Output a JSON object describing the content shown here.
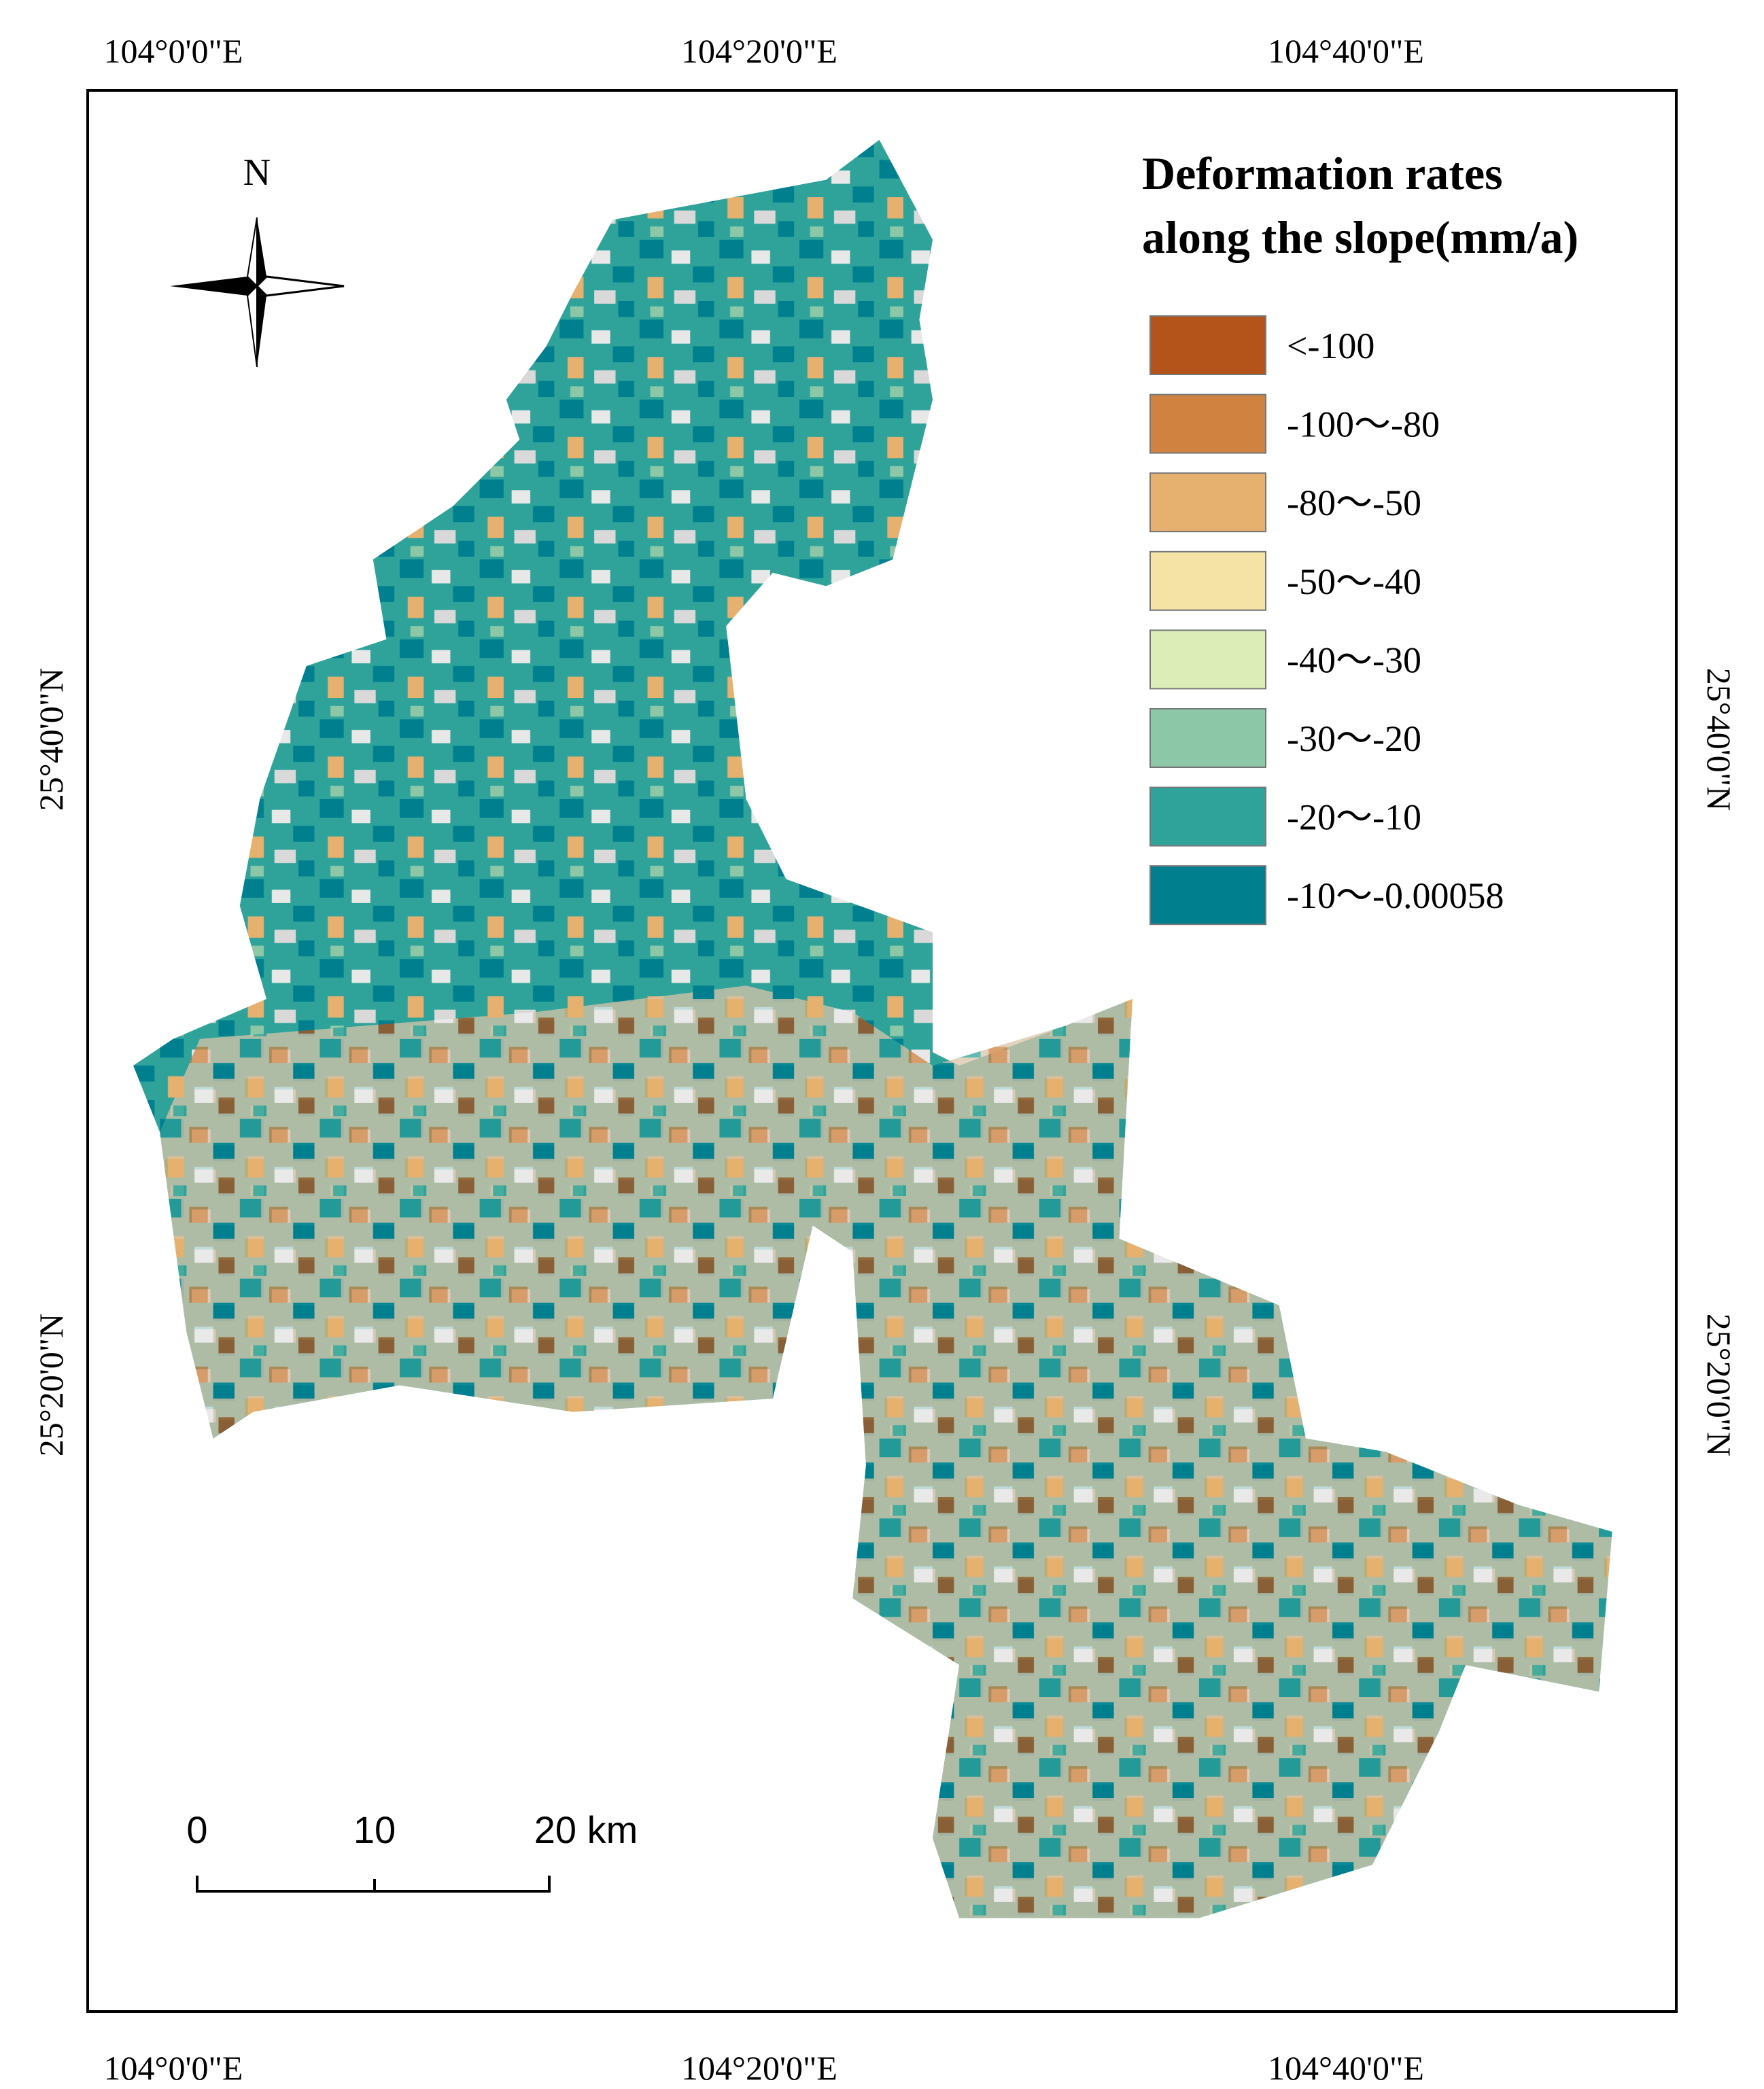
{
  "grid_labels": {
    "top": [
      "104°0'0\"E",
      "104°20'0\"E",
      "104°40'0\"E"
    ],
    "bottom": [
      "104°0'0\"E",
      "104°20'0\"E",
      "104°40'0\"E"
    ],
    "left": [
      "25°40'0\"N",
      "25°20'0\"N"
    ],
    "right": [
      "25°40'0\"N",
      "25°20'0\"N"
    ]
  },
  "north_arrow": "N",
  "legend": {
    "title": [
      "Deformation rates",
      "along the slope(mm/a)"
    ],
    "items": [
      {
        "label": "<-100",
        "color": "#b5541a"
      },
      {
        "label": "-100～-80",
        "color": "#d08240"
      },
      {
        "label": "-80～-50",
        "color": "#e6b06e"
      },
      {
        "label": "-50～-40",
        "color": "#f5e3a6"
      },
      {
        "label": "-40～-30",
        "color": "#dcedb8"
      },
      {
        "label": "-30～-20",
        "color": "#8cc7a7"
      },
      {
        "label": "-20～-10",
        "color": "#2fa39a"
      },
      {
        "label": "-10～-0.00058",
        "color": "#00808f"
      }
    ]
  },
  "scale_bar": [
    "0",
    "10",
    "20 km"
  ]
}
